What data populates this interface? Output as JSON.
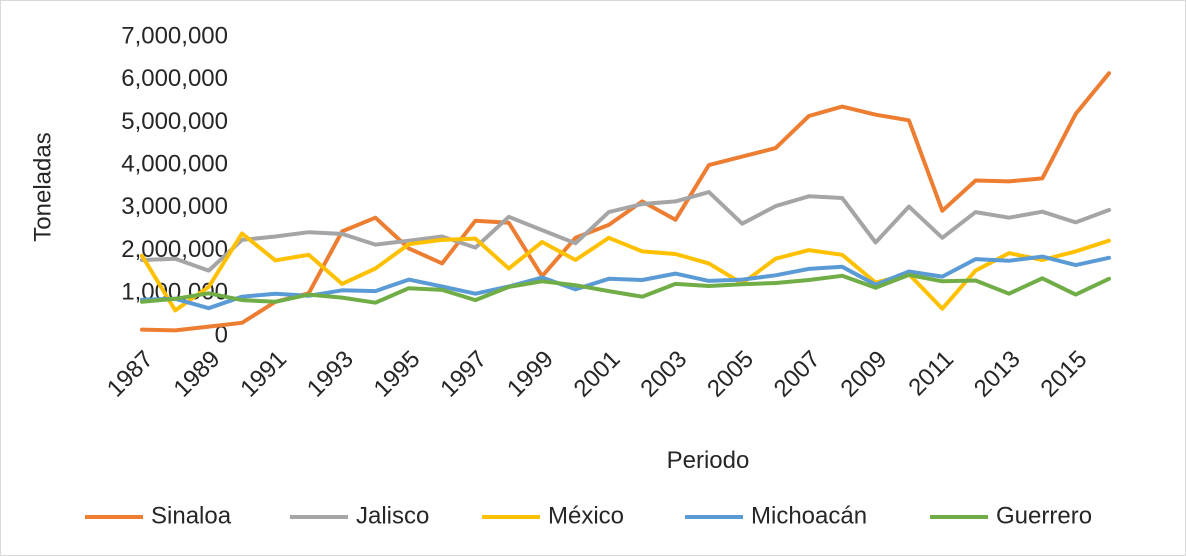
{
  "chart_data": {
    "type": "line",
    "x_label": "Periodo",
    "y_label": "Toneladas",
    "categories": [
      "1987",
      null,
      "1989",
      null,
      "1991",
      null,
      "1993",
      null,
      "1995",
      null,
      "1997",
      null,
      "1999",
      null,
      "2001",
      null,
      "2003",
      null,
      "2005",
      null,
      "2007",
      null,
      "2009",
      null,
      "2011",
      null,
      "2013",
      null,
      "2015",
      null
    ],
    "ylim": [
      0,
      7000000
    ],
    "yticks": [
      0,
      {
        "value": 1000000,
        "label": "1,000,000"
      },
      {
        "value": 2000000,
        "label": "2,000,000"
      },
      {
        "value": 3000000,
        "label": "3,000,000"
      },
      {
        "value": 4000000,
        "label": "4,000,000"
      },
      {
        "value": 5000000,
        "label": "5,000,000"
      },
      {
        "value": 6000000,
        "label": "6,000,000"
      },
      {
        "value": 7000000,
        "label": "7,000,000"
      }
    ],
    "grid": false,
    "legend": "bottom",
    "series": [
      {
        "name": "Sinaloa",
        "color": "#ed7d31",
        "values": [
          150000,
          130000,
          220000,
          310000,
          800000,
          1000000,
          2450000,
          2770000,
          2050000,
          1700000,
          2700000,
          2650000,
          1400000,
          2300000,
          2600000,
          3150000,
          2720000,
          4000000,
          4200000,
          4400000,
          5150000,
          5370000,
          5180000,
          5050000,
          2930000,
          3640000,
          3620000,
          3690000,
          5200000,
          6150000
        ]
      },
      {
        "name": "Jalisco",
        "color": "#a5a5a5",
        "values": [
          1780000,
          1810000,
          1530000,
          2250000,
          2330000,
          2430000,
          2390000,
          2140000,
          2230000,
          2330000,
          2070000,
          2790000,
          2480000,
          2170000,
          2900000,
          3090000,
          3150000,
          3370000,
          2630000,
          3040000,
          3270000,
          3230000,
          2190000,
          3030000,
          2300000,
          2900000,
          2770000,
          2910000,
          2660000,
          2950000
        ]
      },
      {
        "name": "México",
        "color": "#ffc000",
        "values": [
          1880000,
          600000,
          1150000,
          2400000,
          1770000,
          1900000,
          1220000,
          1580000,
          2150000,
          2250000,
          2280000,
          1580000,
          2200000,
          1780000,
          2300000,
          1980000,
          1920000,
          1700000,
          1230000,
          1810000,
          2010000,
          1900000,
          1250000,
          1450000,
          640000,
          1530000,
          1940000,
          1780000,
          1980000,
          2230000
        ]
      },
      {
        "name": "Michoacán",
        "color": "#5b9bd5",
        "values": [
          850000,
          870000,
          650000,
          920000,
          990000,
          940000,
          1070000,
          1050000,
          1320000,
          1160000,
          990000,
          1160000,
          1370000,
          1090000,
          1340000,
          1310000,
          1460000,
          1290000,
          1320000,
          1420000,
          1570000,
          1620000,
          1200000,
          1510000,
          1390000,
          1800000,
          1760000,
          1860000,
          1660000,
          1830000
        ]
      },
      {
        "name": "Guerrero",
        "color": "#70ad47",
        "values": [
          800000,
          870000,
          1000000,
          840000,
          800000,
          970000,
          900000,
          780000,
          1120000,
          1080000,
          840000,
          1150000,
          1280000,
          1190000,
          1050000,
          920000,
          1220000,
          1170000,
          1210000,
          1240000,
          1310000,
          1410000,
          1130000,
          1430000,
          1280000,
          1300000,
          990000,
          1350000,
          970000,
          1340000
        ]
      }
    ]
  }
}
